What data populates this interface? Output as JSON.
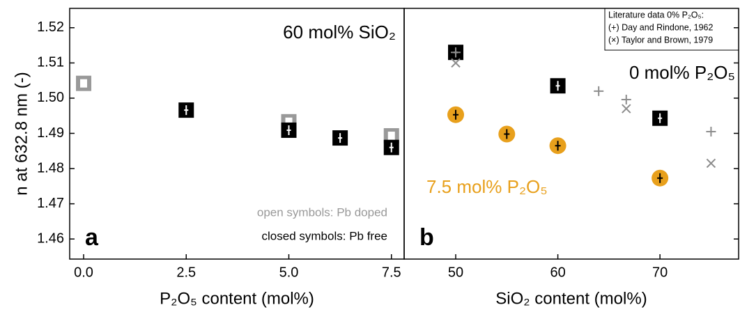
{
  "chart_data": [
    {
      "type": "scatter",
      "ylabel": "n at 632.8 nm (-)",
      "xlabel": "P₂O₅ content (mol%)",
      "annotations": [
        "60 mol% SiO₂",
        "a"
      ],
      "xlim": [
        -0.34,
        7.81
      ],
      "ylim": [
        1.4543,
        1.5255
      ],
      "xticks": [
        {
          "value": 0,
          "label": "0.0"
        },
        2.5,
        {
          "value": 5,
          "label": "5.0"
        },
        7.5
      ],
      "yticks": [
        1.46,
        1.47,
        1.48,
        1.49,
        {
          "value": 1.5,
          "label": "1.50"
        },
        1.51,
        1.52
      ],
      "series": [
        {
          "name": "open symbols: Pb doped",
          "color": "#999999",
          "marker": "open-square",
          "x": [
            0,
            5,
            7.5
          ],
          "values": [
            1.5042,
            1.4933,
            1.4893
          ]
        },
        {
          "name": "closed symbols: Pb free",
          "color": "#000000",
          "marker": "square",
          "x": [
            2.5,
            5,
            6.25,
            7.5
          ],
          "values": [
            1.4966,
            1.4909,
            1.4887,
            1.486
          ]
        }
      ]
    },
    {
      "type": "scatter",
      "xlabel": "SiO₂ content (mol%)",
      "annotations": [
        "b"
      ],
      "legend_title": "Literature data 0% P₂O₅:",
      "xlim": [
        44.95,
        77.7
      ],
      "ylim": [
        1.4543,
        1.5255
      ],
      "xticks": [
        50,
        60,
        70
      ],
      "series": [
        {
          "name": "0 mol% P₂O₅",
          "color": "#000000",
          "marker": "square",
          "x": [
            50,
            60,
            70
          ],
          "values": [
            1.513,
            1.5035,
            1.4943
          ]
        },
        {
          "name": "7.5 mol% P₂O₅",
          "color": "#e8a01c",
          "marker": "circle",
          "x": [
            50,
            55,
            60,
            70
          ],
          "values": [
            1.4953,
            1.4898,
            1.4865,
            1.4773
          ]
        },
        {
          "name": "(+) Day and Rindone, 1962",
          "color": "#8c8c8c",
          "marker": "plus",
          "x": [
            50,
            64,
            66.7,
            75
          ],
          "values": [
            1.513,
            1.502,
            1.4996,
            1.4905
          ]
        },
        {
          "name": "(×) Taylor and Brown, 1979",
          "color": "#8c8c8c",
          "marker": "x",
          "x": [
            50,
            66.7,
            75
          ],
          "values": [
            1.51,
            1.497,
            1.4815
          ]
        }
      ]
    }
  ]
}
